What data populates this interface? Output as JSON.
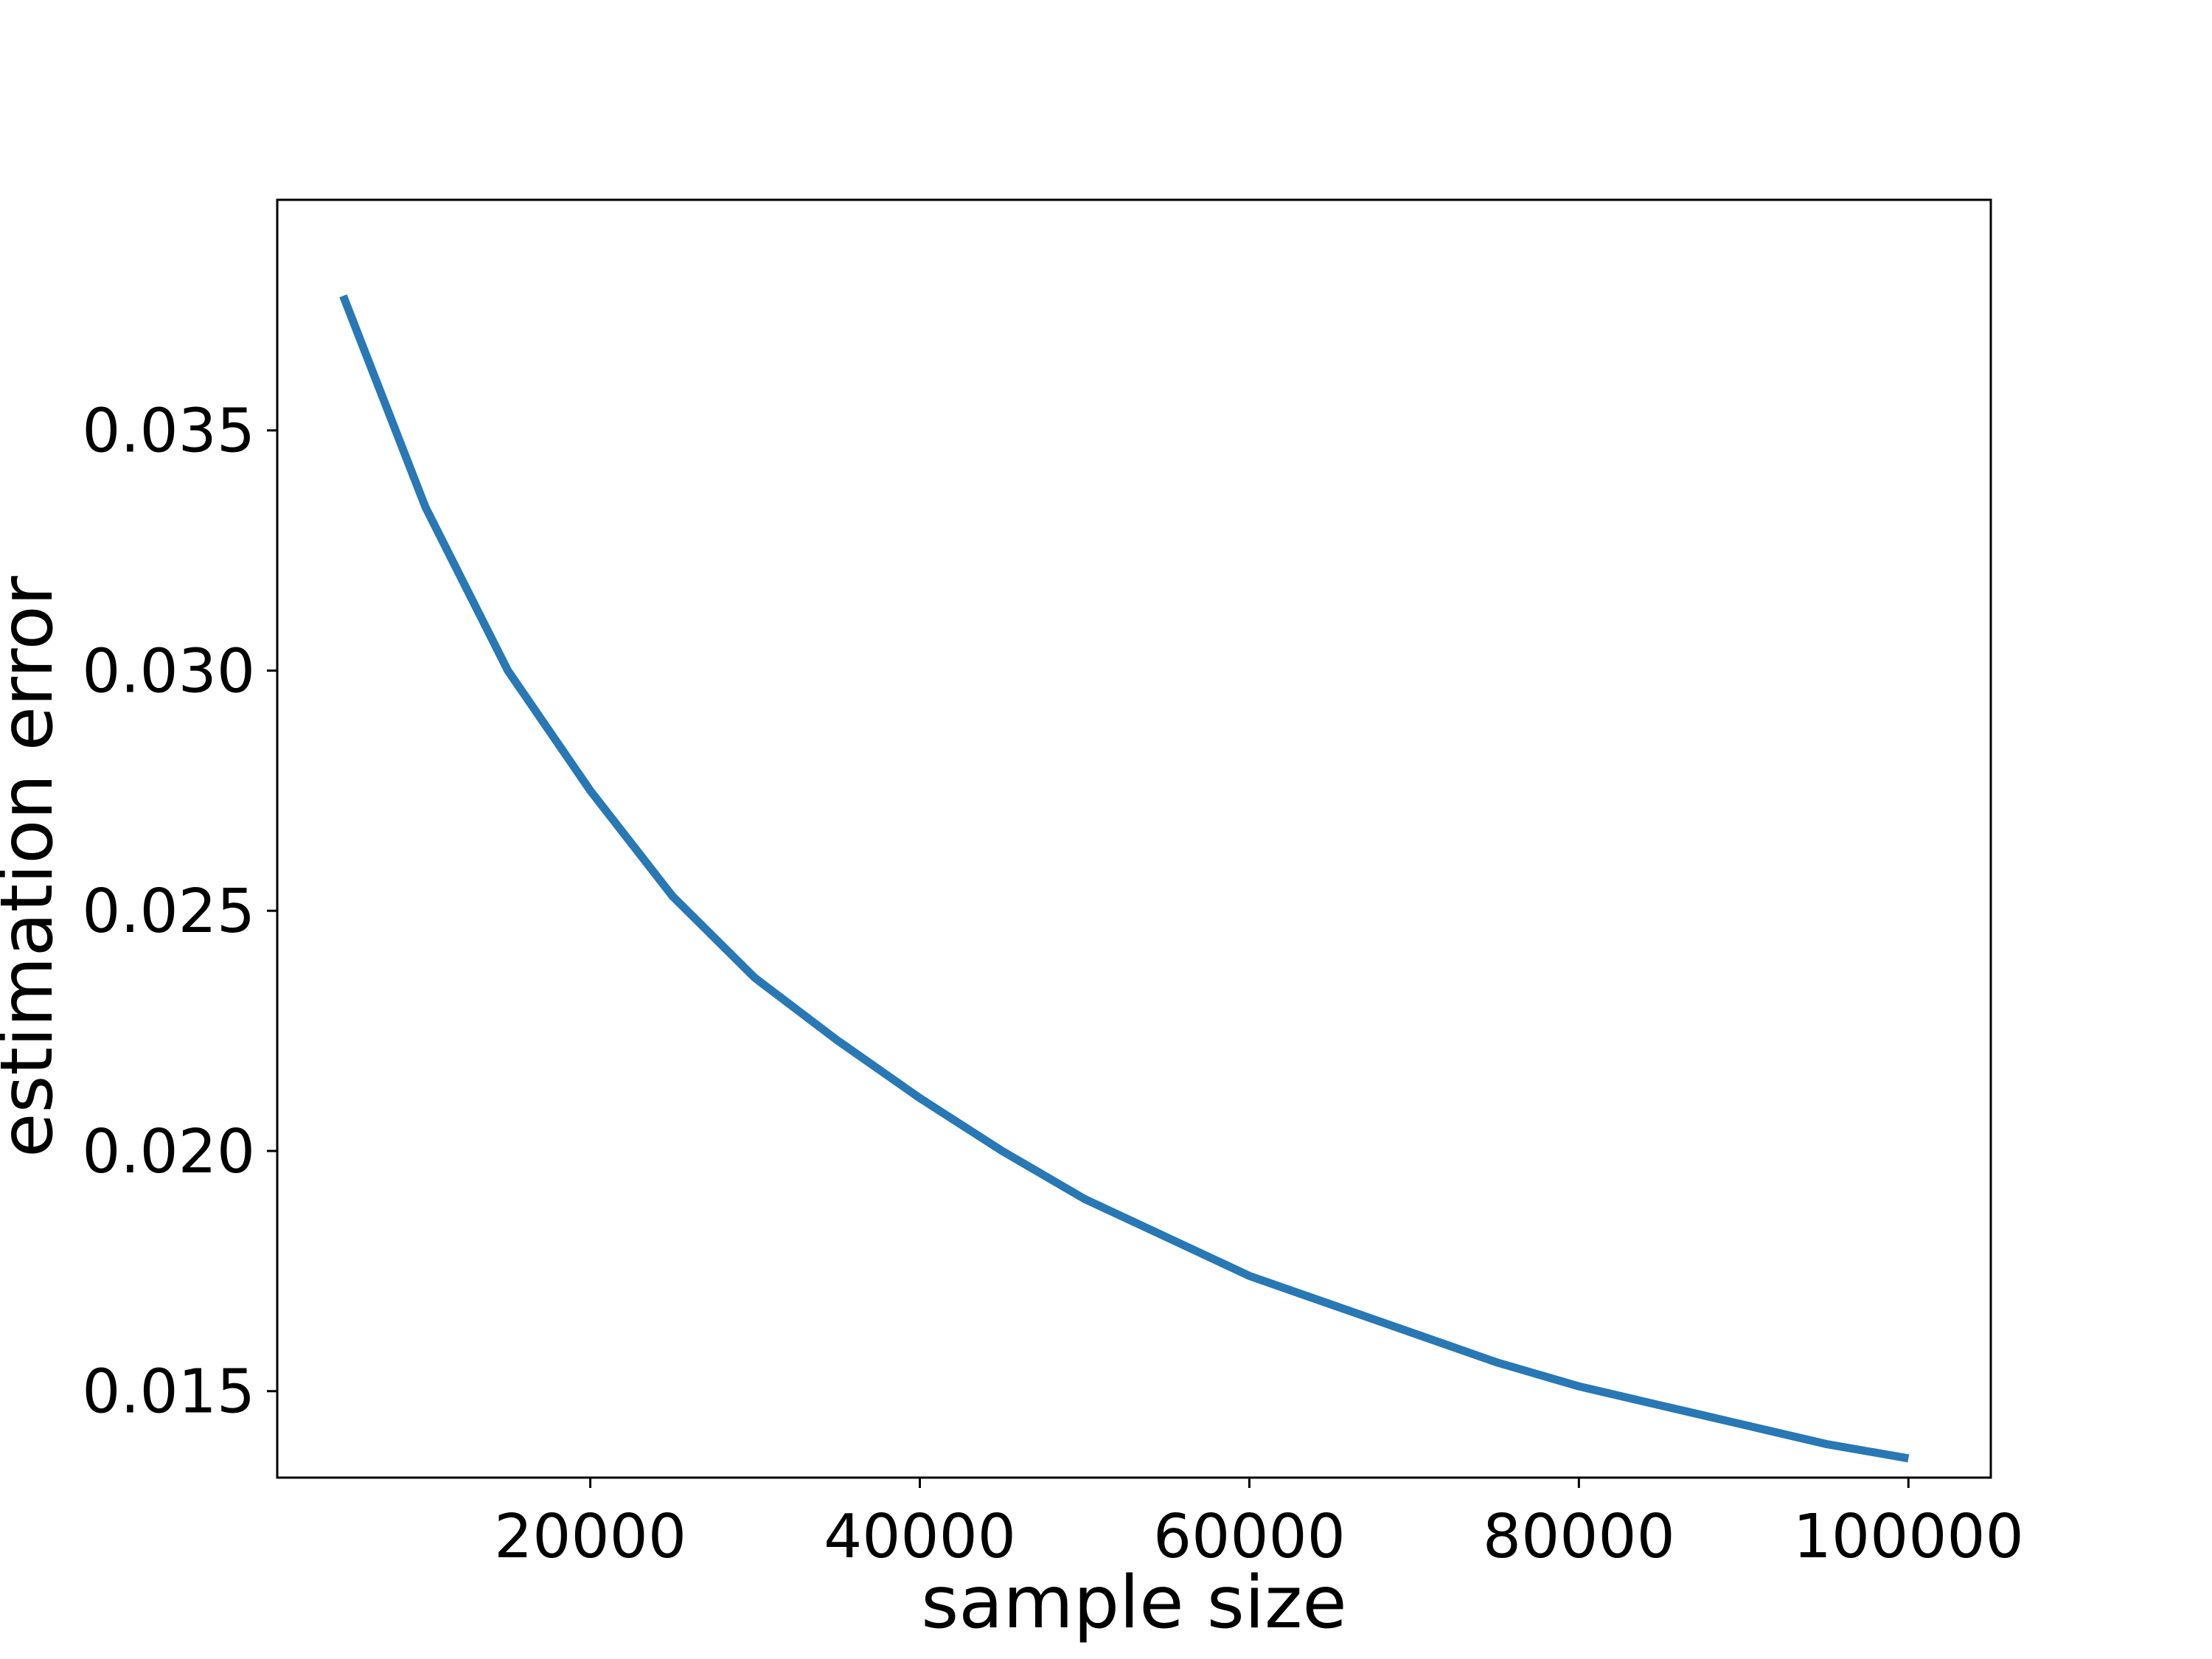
{
  "chart_data": {
    "type": "line",
    "title": "",
    "xlabel": "sample size",
    "ylabel": "estimation error",
    "xlim": [
      1000,
      105000
    ],
    "ylim": [
      0.0132,
      0.0398
    ],
    "x_ticks": [
      20000,
      40000,
      60000,
      80000,
      100000
    ],
    "y_ticks": [
      0.015,
      0.02,
      0.025,
      0.03,
      0.035
    ],
    "x_tick_labels": [
      "20000",
      "40000",
      "60000",
      "80000",
      "100000"
    ],
    "y_tick_labels": [
      "0.015",
      "0.020",
      "0.025",
      "0.030",
      "0.035"
    ],
    "grid": false,
    "legend": "none",
    "colors": {
      "line": "#2878b5",
      "axes": "#000000",
      "background": "#ffffff"
    },
    "series": [
      {
        "x": [
          5000,
          10000,
          15000,
          20000,
          25000,
          30000,
          35000,
          40000,
          45000,
          50000,
          55000,
          60000,
          65000,
          70000,
          75000,
          80000,
          85000,
          90000,
          95000,
          100000
        ],
        "y": [
          0.0378,
          0.0334,
          0.03,
          0.0275,
          0.0253,
          0.0236,
          0.0223,
          0.0211,
          0.02,
          0.019,
          0.0182,
          0.0174,
          0.0168,
          0.0162,
          0.0156,
          0.0151,
          0.0147,
          0.0143,
          0.0139,
          0.0136
        ]
      }
    ]
  }
}
